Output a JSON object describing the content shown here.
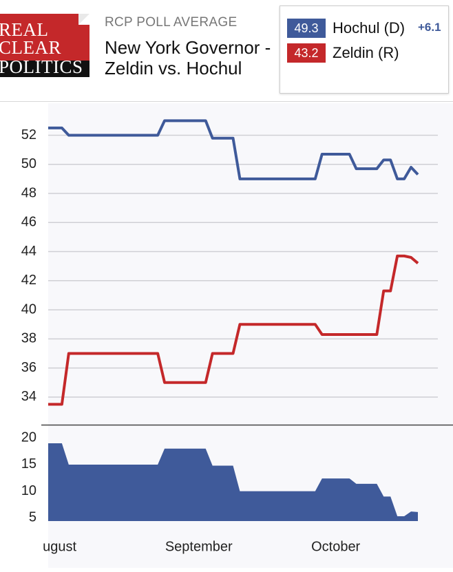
{
  "header": {
    "logo": [
      "REAL",
      "CLEAR",
      "POLITICS"
    ],
    "kicker": "RCP POLL AVERAGE",
    "title": "New York Governor - Zeldin vs. Hochul",
    "lead": "+6.1"
  },
  "chart_data": [
    {
      "type": "line",
      "ylim": [
        32.1,
        54.2
      ],
      "yticks": [
        34,
        36,
        38,
        40,
        42,
        44,
        46,
        48,
        50,
        52
      ],
      "grid": true,
      "series": [
        {
          "name": "Hochul (D)",
          "color": "#3f5a9a",
          "values": [
            52.5,
            52.5,
            52.5,
            52,
            52,
            52,
            52,
            52,
            52,
            52,
            52,
            52,
            52,
            52,
            52,
            52,
            52,
            53,
            53,
            53,
            53,
            53,
            53,
            53,
            51.8,
            51.8,
            51.8,
            51.8,
            49,
            49,
            49,
            49,
            49,
            49,
            49,
            49,
            49,
            49,
            49,
            49,
            50.7,
            50.7,
            50.7,
            50.7,
            50.7,
            49.7,
            49.7,
            49.7,
            49.7,
            50.3,
            50.3,
            49,
            49,
            49.8,
            49.3
          ]
        },
        {
          "name": "Zeldin (R)",
          "color": "#c4282a",
          "values": [
            33.5,
            33.5,
            33.5,
            37,
            37,
            37,
            37,
            37,
            37,
            37,
            37,
            37,
            37,
            37,
            37,
            37,
            37,
            35,
            35,
            35,
            35,
            35,
            35,
            35,
            37,
            37,
            37,
            37,
            39,
            39,
            39,
            39,
            39,
            39,
            39,
            39,
            39,
            39,
            39,
            39,
            38.3,
            38.3,
            38.3,
            38.3,
            38.3,
            38.3,
            38.3,
            38.3,
            38.3,
            41.3,
            41.3,
            43.7,
            43.7,
            43.6,
            43.2
          ]
        }
      ]
    },
    {
      "type": "area",
      "ylim": [
        4.4,
        22.1
      ],
      "yticks": [
        5,
        10,
        15,
        20
      ],
      "color": "#3f5a9a",
      "categories": [
        null,
        "August",
        null,
        null,
        null,
        null,
        null,
        null,
        null,
        null,
        null,
        null,
        null,
        null,
        null,
        null,
        null,
        null,
        null,
        null,
        null,
        null,
        "September",
        null,
        null,
        null,
        null,
        null,
        null,
        null,
        null,
        null,
        null,
        null,
        null,
        null,
        null,
        null,
        null,
        null,
        null,
        null,
        "October",
        null,
        null,
        null,
        null,
        null,
        null,
        null,
        null,
        null,
        null,
        null,
        null
      ],
      "values": [
        19,
        19,
        19,
        15,
        15,
        15,
        15,
        15,
        15,
        15,
        15,
        15,
        15,
        15,
        15,
        15,
        15,
        18,
        18,
        18,
        18,
        18,
        18,
        18,
        14.8,
        14.8,
        14.8,
        14.8,
        10,
        10,
        10,
        10,
        10,
        10,
        10,
        10,
        10,
        10,
        10,
        10,
        12.4,
        12.4,
        12.4,
        12.4,
        12.4,
        11.4,
        11.4,
        11.4,
        11.4,
        9,
        9,
        5.3,
        5.3,
        6.2,
        6.1
      ]
    }
  ]
}
